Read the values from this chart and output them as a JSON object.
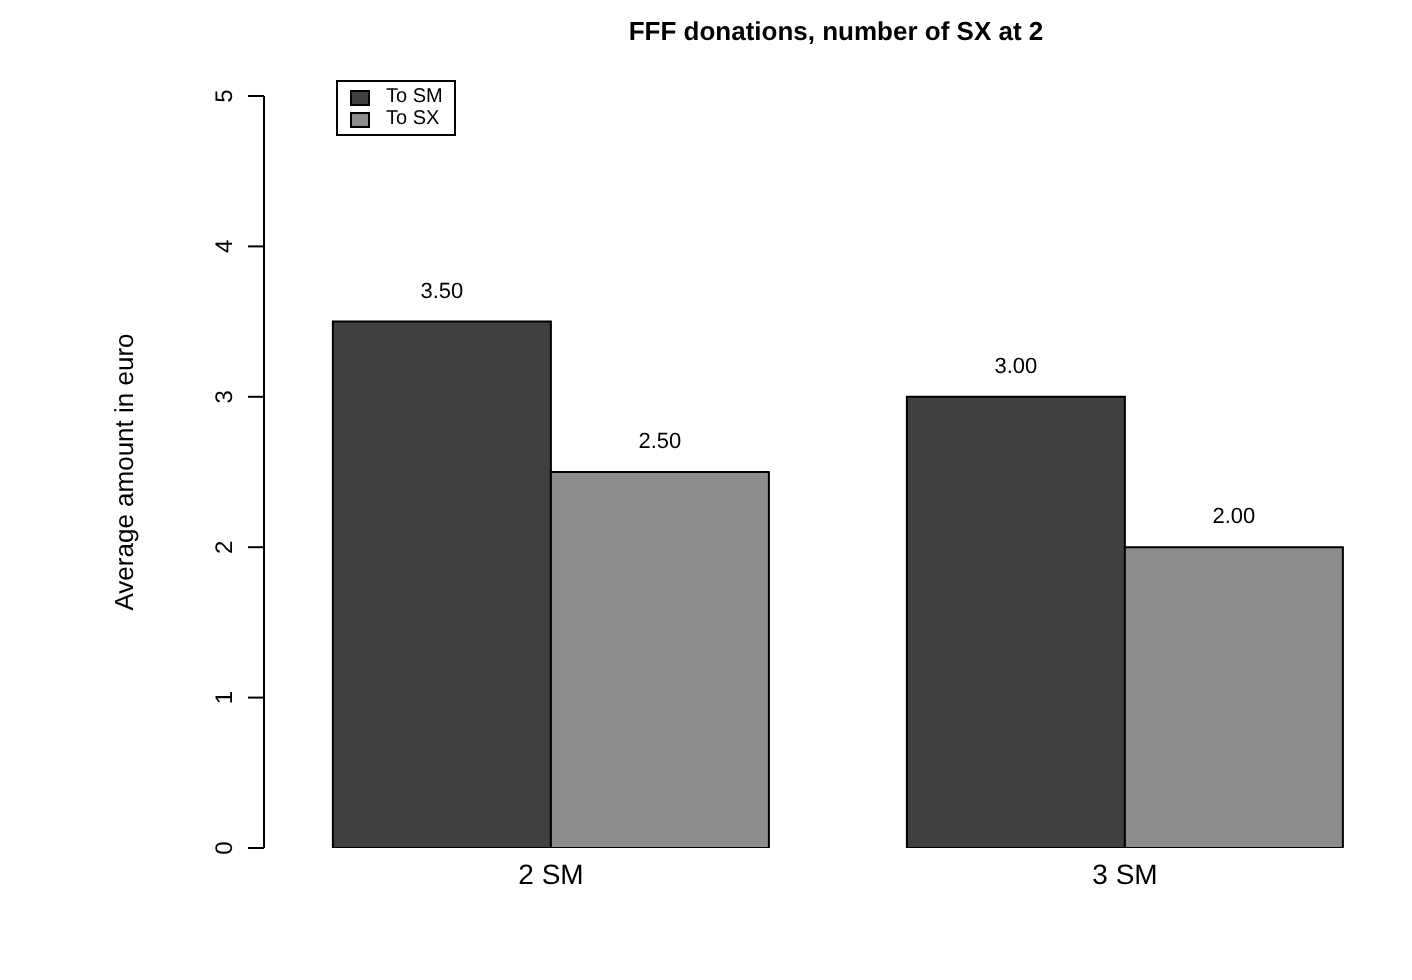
{
  "chart_data": {
    "type": "bar",
    "title": "FFF donations, number of SX at 2",
    "ylabel": "Average amount in euro",
    "categories": [
      "2 SM",
      "3 SM"
    ],
    "series": [
      {
        "name": "To SM",
        "color": "#404040",
        "values": [
          3.5,
          3.0
        ],
        "value_labels": [
          "3.50",
          "3.00"
        ]
      },
      {
        "name": "To SX",
        "color": "#8c8c8c",
        "values": [
          2.5,
          2.0
        ],
        "value_labels": [
          "2.50",
          "2.00"
        ]
      }
    ],
    "ylim": [
      0,
      5
    ],
    "yticks": [
      0,
      1,
      2,
      3,
      4,
      5
    ],
    "legend": "top left"
  }
}
